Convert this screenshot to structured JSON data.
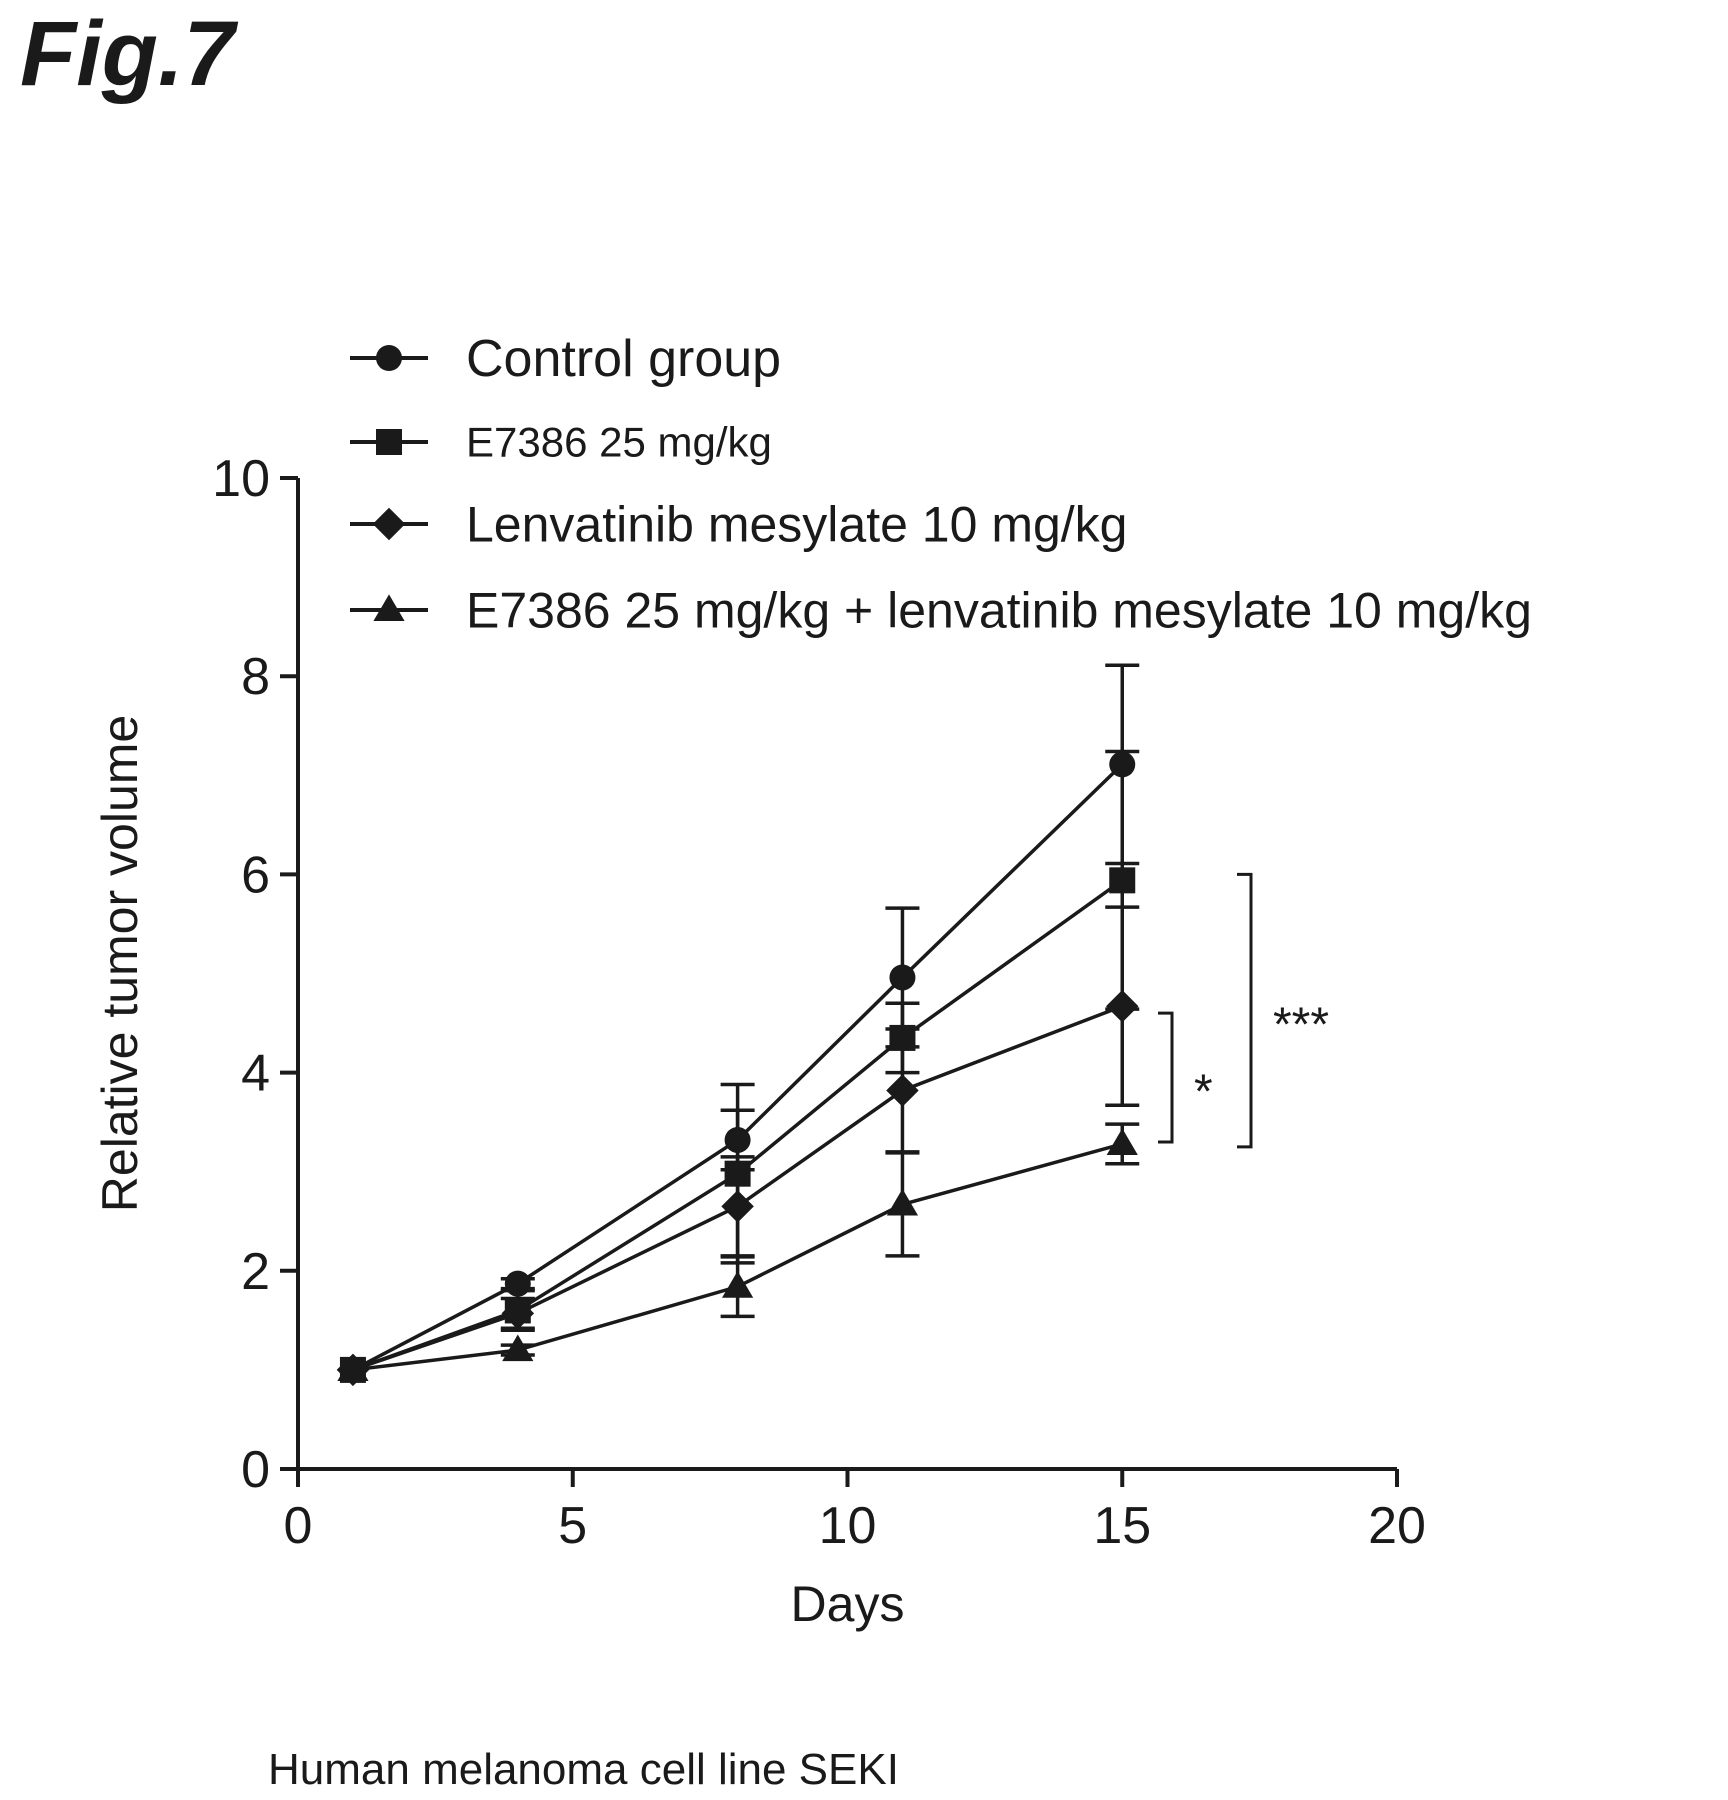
{
  "figure": {
    "label": "Fig.7",
    "caption": "Human melanoma cell line SEKI"
  },
  "chart_data": {
    "type": "line",
    "xlabel": "Days",
    "ylabel": "Relative tumor volume",
    "xlim": [
      0,
      20
    ],
    "ylim": [
      0,
      10
    ],
    "xticks": [
      0,
      5,
      10,
      15,
      20
    ],
    "yticks": [
      0,
      2,
      4,
      6,
      8,
      10
    ],
    "grid": false,
    "legend_position": "top",
    "x": [
      1,
      4,
      8,
      11,
      15
    ],
    "series": [
      {
        "name": "Control group",
        "marker": "circle",
        "values": [
          1.0,
          1.87,
          3.32,
          4.96,
          7.11
        ],
        "error": [
          0.0,
          0.05,
          0.3,
          0.7,
          1.0
        ]
      },
      {
        "name": "E7386 25 mg/kg",
        "marker": "square",
        "values": [
          1.0,
          1.6,
          2.98,
          4.35,
          5.94
        ],
        "error": [
          0.0,
          0.2,
          0.9,
          0.35,
          1.3
        ]
      },
      {
        "name": "Lenvatinib mesylate 10 mg/kg",
        "marker": "diamond",
        "values": [
          1.0,
          1.57,
          2.65,
          3.82,
          4.67
        ],
        "error": [
          0.0,
          0.15,
          0.5,
          0.62,
          1.0
        ]
      },
      {
        "name": "E7386 25 mg/kg + lenvatinib mesylate 10 mg/kg",
        "marker": "triangle",
        "values": [
          1.0,
          1.2,
          1.84,
          2.67,
          3.28
        ],
        "error": [
          0.0,
          0.05,
          0.3,
          0.52,
          0.2
        ]
      }
    ],
    "annotations": [
      {
        "label": "*",
        "between": [
          "Lenvatinib mesylate 10 mg/kg",
          "E7386 25 mg/kg + lenvatinib mesylate 10 mg/kg"
        ],
        "y_range": [
          3.3,
          4.6
        ]
      },
      {
        "label": "***",
        "between": [
          "E7386 25 mg/kg",
          "E7386 25 mg/kg + lenvatinib mesylate 10 mg/kg"
        ],
        "y_range": [
          3.25,
          6.0
        ]
      }
    ]
  }
}
